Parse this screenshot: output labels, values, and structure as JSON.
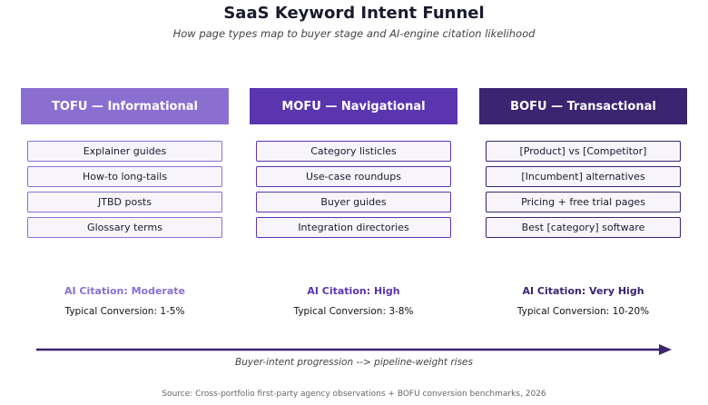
{
  "header": {
    "title": "SaaS Keyword Intent Funnel",
    "subtitle": "How page types map to buyer stage and AI-engine citation likelihood"
  },
  "columns": [
    {
      "label": "TOFU — Informational",
      "items": [
        "Explainer guides",
        "How-to long-tails",
        "JTBD posts",
        "Glossary terms"
      ],
      "citation": "AI Citation: Moderate",
      "conversion": "Typical Conversion: 1-5%"
    },
    {
      "label": "MOFU — Navigational",
      "items": [
        "Category listicles",
        "Use-case roundups",
        "Buyer guides",
        "Integration directories"
      ],
      "citation": "AI Citation: High",
      "conversion": "Typical Conversion: 3-8%"
    },
    {
      "label": "BOFU — Transactional",
      "items": [
        "[Product] vs [Competitor]",
        "[Incumbent] alternatives",
        "Pricing + free trial pages",
        "Best [category] software"
      ],
      "citation": "AI Citation: Very High",
      "conversion": "Typical Conversion: 10-20%"
    }
  ],
  "arrow": {
    "label": "Buyer-intent progression  -->  pipeline-weight rises"
  },
  "footer": {
    "source": "Source: Cross-portfolio first-party agency observations + BOFU conversion benchmarks, 2026"
  }
}
